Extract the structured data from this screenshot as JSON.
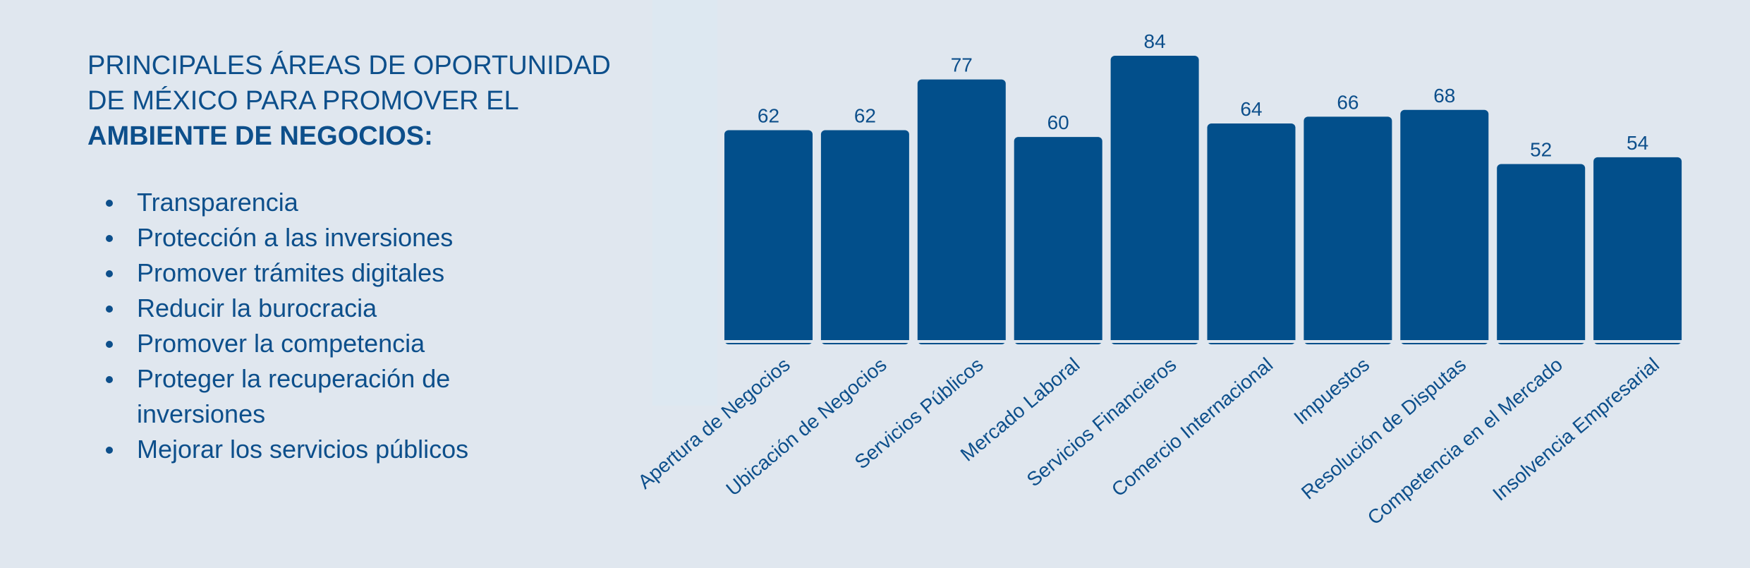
{
  "heading": {
    "normal": "PRINCIPALES ÁREAS DE OPORTUNIDAD DE MÉXICO PARA PROMOVER EL ",
    "bold": "AMBIENTE DE NEGOCIOS:"
  },
  "bullets": [
    "Transparencia",
    "Protección a las inversiones",
    "Promover trámites digitales",
    "Reducir la burocracia",
    "Promover la competencia",
    "Proteger la recuperación de inversiones",
    "Mejorar los servicios públicos"
  ],
  "colors": {
    "bar": "#024f8b",
    "text": "#0d4f8b",
    "background": "#e0e7ef"
  },
  "chart_data": {
    "type": "bar",
    "categories": [
      "Apertura de Negocios",
      "Ubicación de Negocios",
      "Servicios Públicos",
      "Mercado Laboral",
      "Servicios Financieros",
      "Comercio Internacional",
      "Impuestos",
      "Resolución de Disputas",
      "Competencia en el Mercado",
      "Insolvencia Empresarial"
    ],
    "values": [
      62,
      62,
      77,
      60,
      84,
      64,
      66,
      68,
      52,
      54
    ],
    "title": "",
    "xlabel": "",
    "ylabel": "",
    "ylim": [
      0,
      84
    ],
    "grid": false,
    "data_labels": true
  }
}
